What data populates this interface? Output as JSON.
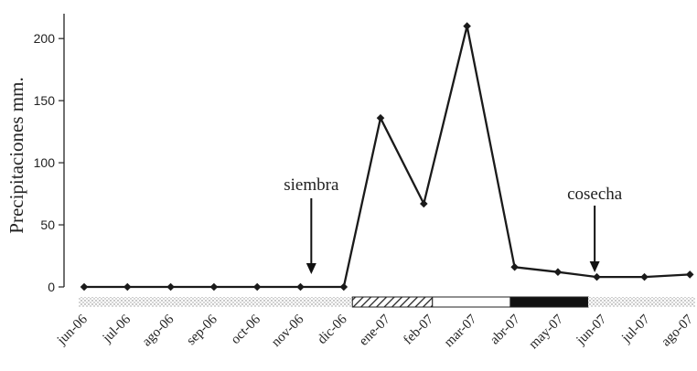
{
  "chart_data": {
    "type": "line",
    "ylabel": "Precipitaciones mm.",
    "ylim": [
      0,
      220
    ],
    "yticks": [
      0,
      50,
      100,
      150,
      200
    ],
    "categories": [
      "jun-06",
      "jul-06",
      "ago-06",
      "sep-06",
      "oct-06",
      "nov-06",
      "dic-06",
      "ene-07",
      "feb-07",
      "mar-07",
      "abr-07",
      "may-07",
      "jun-07",
      "jul-07",
      "ago-07"
    ],
    "series": [
      {
        "x": [
          0,
          1,
          2,
          3,
          4,
          5,
          6,
          6.85,
          7.85,
          8.85,
          9.95,
          10.95,
          11.85,
          12.95,
          14.0
        ],
        "values": [
          0,
          0,
          0,
          0,
          0,
          0,
          0,
          136,
          67,
          210,
          16,
          12,
          8,
          8,
          10
        ]
      }
    ],
    "annotations": [
      {
        "text": "siembra",
        "x": 5.25
      },
      {
        "text": "cosecha",
        "x": 11.8
      }
    ],
    "phase_bar": [
      {
        "from": -0.3,
        "to": 6.2,
        "pattern": "stipple"
      },
      {
        "from": 6.2,
        "to": 8.05,
        "pattern": "hatch"
      },
      {
        "from": 8.05,
        "to": 9.85,
        "pattern": "white"
      },
      {
        "from": 9.85,
        "to": 11.65,
        "pattern": "black"
      },
      {
        "from": 11.65,
        "to": 14.3,
        "pattern": "stipple"
      }
    ],
    "grid": false,
    "line_color": "#1a1a1a"
  }
}
